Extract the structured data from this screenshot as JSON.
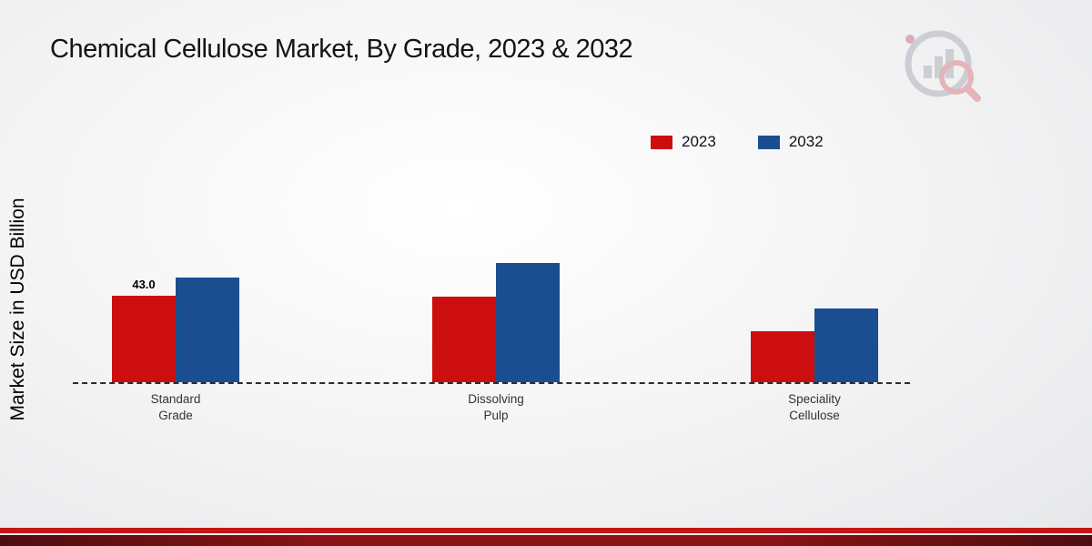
{
  "page": {
    "title": "Chemical Cellulose Market, By Grade, 2023 & 2032",
    "ylabel": "Market Size in USD Billion"
  },
  "theme": {
    "accent_red": "#c41617",
    "accent_blue": "#1b4e91",
    "footer_maroon": "#8c1214"
  },
  "legend": [
    {
      "label": "2023",
      "color": "#cc0e0e"
    },
    {
      "label": "2032",
      "color": "#1b4e91"
    }
  ],
  "chart_data": {
    "type": "bar",
    "title": "Chemical Cellulose Market, By Grade, 2023 & 2032",
    "xlabel": "",
    "ylabel": "Market Size in USD Billion",
    "categories": [
      "Standard Grade",
      "Dissolving Pulp",
      "Speciality Cellulose"
    ],
    "series": [
      {
        "name": "2023",
        "color": "#cc0e0e",
        "values": [
          43.0,
          42.5,
          25.5
        ]
      },
      {
        "name": "2032",
        "color": "#1b4e91",
        "values": [
          52.0,
          59.5,
          36.5
        ]
      }
    ],
    "annotations": [
      {
        "series": "2023",
        "category_index": 0,
        "text": "43.0"
      }
    ],
    "ylim": [
      0,
      127
    ],
    "grid": false,
    "legend_position": "top-right",
    "baseline_style": "dashed"
  }
}
